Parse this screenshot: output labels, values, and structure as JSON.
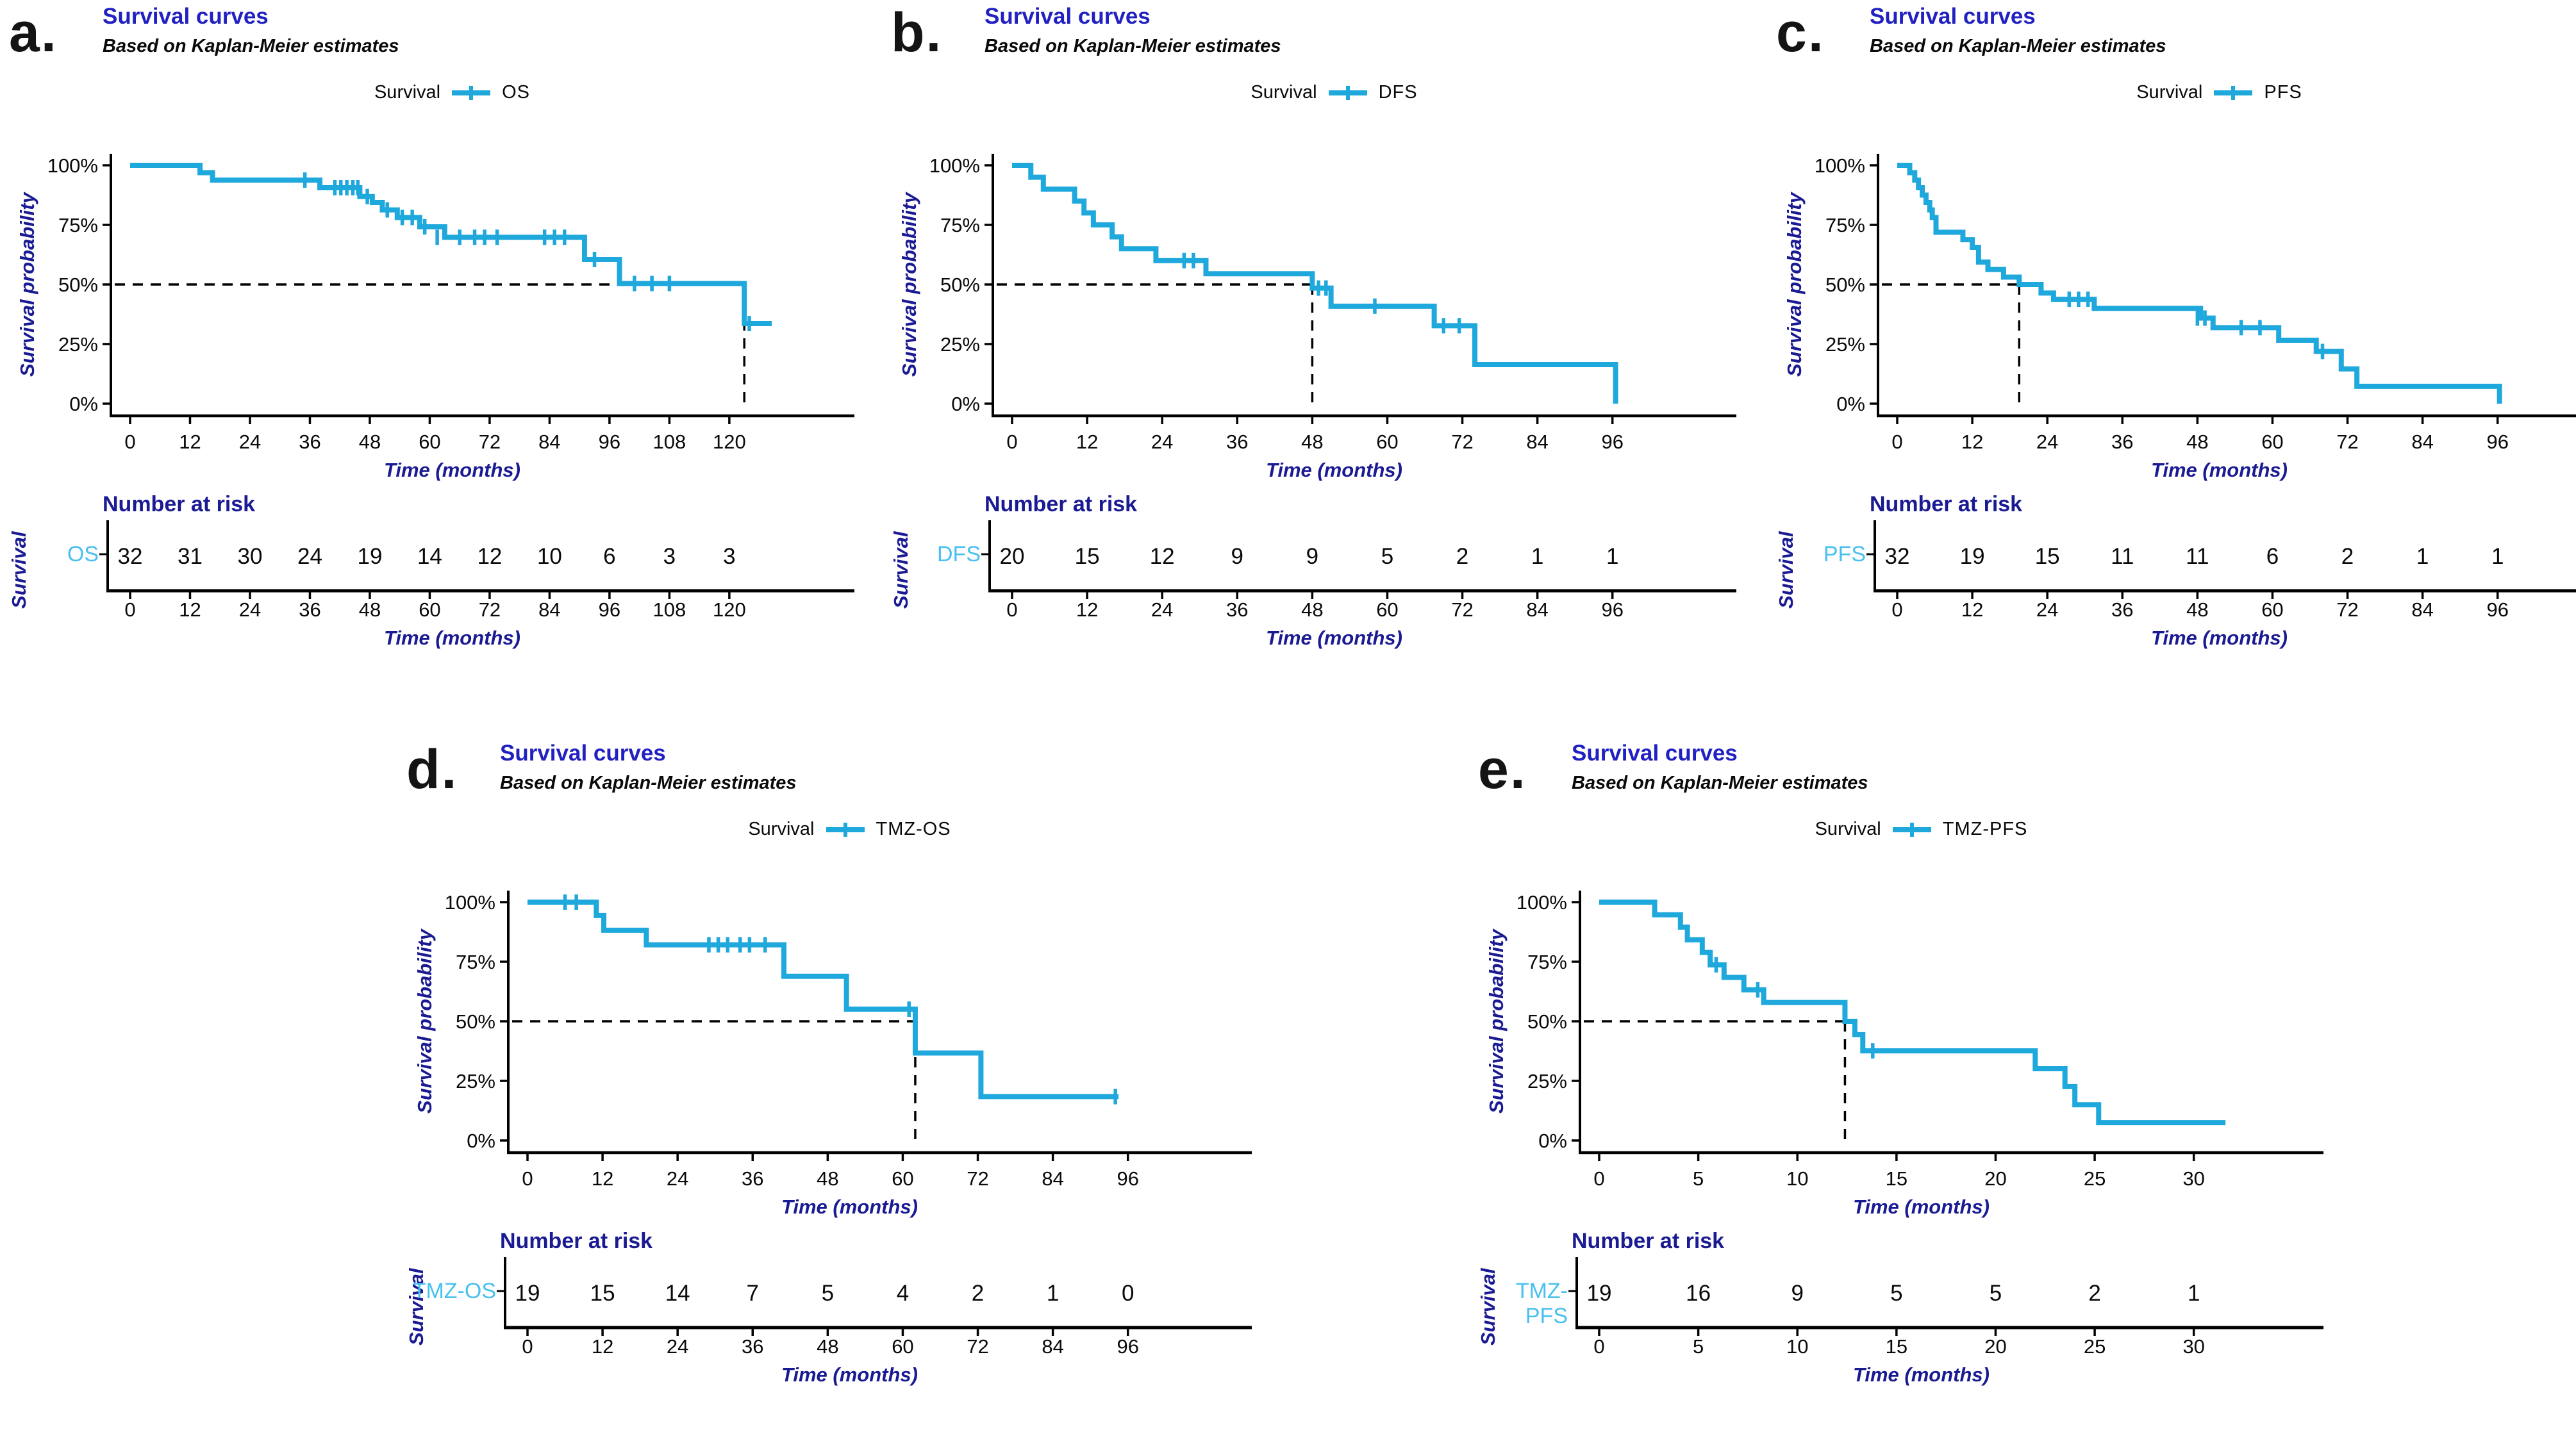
{
  "colors": {
    "curve": "#1FA8DC",
    "risk_row_label": "#49C0EF",
    "title_blue": "#2121C2",
    "axis_label_navy": "#1A1A93",
    "text_black": "#0a0a0a"
  },
  "chart_data": [
    {
      "type": "line",
      "letter": "a.",
      "title": "Survival curves",
      "subtitle": "Based on Kaplan-Meier estimates",
      "legend_label": "Survival",
      "series_name": "OS",
      "ylabel": "Survival probability",
      "xlabel": "Time (months)",
      "yticks": [
        "100%",
        "75%",
        "50%",
        "25%",
        "0%"
      ],
      "ylim": [
        0,
        100
      ],
      "xticks": [
        0,
        12,
        24,
        36,
        48,
        60,
        72,
        84,
        96,
        108,
        120
      ],
      "domain_max": 129,
      "median_month": 123,
      "steps": [
        [
          0,
          100
        ],
        [
          14,
          96.9
        ],
        [
          16.5,
          93.8
        ],
        [
          38,
          90.6
        ],
        [
          46,
          86.9
        ],
        [
          48.5,
          84.4
        ],
        [
          50.5,
          81.3
        ],
        [
          53.5,
          78.1
        ],
        [
          58,
          74.2
        ],
        [
          63,
          69.8
        ],
        [
          91,
          60.5
        ],
        [
          98,
          50.4
        ],
        [
          123,
          33.6
        ],
        [
          128.5,
          33.6
        ]
      ],
      "censors": [
        [
          35,
          93.8
        ],
        [
          41,
          90.6
        ],
        [
          42.2,
          90.6
        ],
        [
          43.4,
          90.6
        ],
        [
          44.6,
          90.6
        ],
        [
          45.6,
          90.6
        ],
        [
          47.5,
          86.9
        ],
        [
          51.5,
          81.3
        ],
        [
          54.5,
          78.1
        ],
        [
          56.5,
          78.1
        ],
        [
          59,
          74.2
        ],
        [
          61.5,
          69.8
        ],
        [
          66,
          69.8
        ],
        [
          69,
          69.8
        ],
        [
          71,
          69.8
        ],
        [
          73.5,
          69.8
        ],
        [
          83,
          69.8
        ],
        [
          85,
          69.8
        ],
        [
          87,
          69.8
        ],
        [
          93,
          60.5
        ],
        [
          101,
          50.4
        ],
        [
          104.5,
          50.4
        ],
        [
          108,
          50.4
        ],
        [
          124,
          33.6
        ]
      ],
      "risk": {
        "title": "Number at risk",
        "ylabel": "Survival",
        "row_label": "OS",
        "times": [
          0,
          12,
          24,
          36,
          48,
          60,
          72,
          84,
          96,
          108,
          120
        ],
        "values": [
          32,
          31,
          30,
          24,
          19,
          14,
          12,
          10,
          6,
          3,
          3
        ]
      }
    },
    {
      "type": "line",
      "letter": "b.",
      "title": "Survival curves",
      "subtitle": "Based on Kaplan-Meier estimates",
      "legend_label": "Survival",
      "series_name": "DFS",
      "ylabel": "Survival probability",
      "xlabel": "Time (months)",
      "yticks": [
        "100%",
        "75%",
        "50%",
        "25%",
        "0%"
      ],
      "ylim": [
        0,
        100
      ],
      "xticks": [
        0,
        12,
        24,
        36,
        48,
        60,
        72,
        84,
        96
      ],
      "domain_max": 103,
      "median_month": 48,
      "steps": [
        [
          0,
          100
        ],
        [
          3,
          95
        ],
        [
          5,
          90
        ],
        [
          10,
          85
        ],
        [
          11.5,
          80
        ],
        [
          13,
          75
        ],
        [
          16,
          70
        ],
        [
          17.5,
          65
        ],
        [
          23,
          60
        ],
        [
          31,
          54.5
        ],
        [
          48,
          48.5
        ],
        [
          51,
          40.9
        ],
        [
          67.5,
          32.7
        ],
        [
          74,
          16.4
        ],
        [
          96.5,
          0
        ]
      ],
      "censors": [
        [
          27.5,
          60
        ],
        [
          29,
          60
        ],
        [
          49,
          48.5
        ],
        [
          50.2,
          48.5
        ],
        [
          58,
          40.9
        ],
        [
          69,
          32.7
        ],
        [
          71.5,
          32.7
        ]
      ],
      "risk": {
        "title": "Number at risk",
        "ylabel": "Survival",
        "row_label": "DFS",
        "times": [
          0,
          12,
          24,
          36,
          48,
          60,
          72,
          84,
          96
        ],
        "values": [
          20,
          15,
          12,
          9,
          9,
          5,
          2,
          1,
          1
        ]
      }
    },
    {
      "type": "line",
      "letter": "c.",
      "title": "Survival curves",
      "subtitle": "Based on Kaplan-Meier estimates",
      "legend_label": "Survival",
      "series_name": "PFS",
      "ylabel": "Survival probability",
      "xlabel": "Time (months)",
      "yticks": [
        "100%",
        "75%",
        "50%",
        "25%",
        "0%"
      ],
      "ylim": [
        0,
        100
      ],
      "xticks": [
        0,
        12,
        24,
        36,
        48,
        60,
        72,
        84,
        96
      ],
      "domain_max": 103,
      "median_month": 19.5,
      "steps": [
        [
          0,
          100
        ],
        [
          2,
          96.9
        ],
        [
          2.8,
          93.8
        ],
        [
          3.4,
          90.6
        ],
        [
          4,
          87.5
        ],
        [
          4.6,
          84.4
        ],
        [
          5.2,
          81.3
        ],
        [
          5.6,
          78.1
        ],
        [
          6.2,
          71.9
        ],
        [
          10.5,
          68.8
        ],
        [
          12,
          65.6
        ],
        [
          13,
          59.4
        ],
        [
          14.5,
          56.3
        ],
        [
          17,
          53.1
        ],
        [
          19.5,
          50
        ],
        [
          23,
          46.4
        ],
        [
          25,
          43.8
        ],
        [
          31.5,
          40
        ],
        [
          48.5,
          35.9
        ],
        [
          50.5,
          31.9
        ],
        [
          61,
          26.6
        ],
        [
          67,
          21.9
        ],
        [
          71,
          14.6
        ],
        [
          73.5,
          7.3
        ],
        [
          96.3,
          0
        ]
      ],
      "censors": [
        [
          27.5,
          43.8
        ],
        [
          29,
          43.8
        ],
        [
          30.5,
          43.8
        ],
        [
          48,
          35.9
        ],
        [
          49.2,
          35.9
        ],
        [
          55,
          31.9
        ],
        [
          58,
          31.9
        ],
        [
          68,
          21.9
        ]
      ],
      "risk": {
        "title": "Number at risk",
        "ylabel": "Survival",
        "row_label": "PFS",
        "times": [
          0,
          12,
          24,
          36,
          48,
          60,
          72,
          84,
          96
        ],
        "values": [
          32,
          19,
          15,
          11,
          11,
          6,
          2,
          1,
          1
        ]
      }
    },
    {
      "type": "line",
      "letter": "d.",
      "title": "Survival curves",
      "subtitle": "Based on Kaplan-Meier estimates",
      "legend_label": "Survival",
      "series_name": "TMZ-OS",
      "ylabel": "Survival probability",
      "xlabel": "Time (months)",
      "yticks": [
        "100%",
        "75%",
        "50%",
        "25%",
        "0%"
      ],
      "ylim": [
        0,
        100
      ],
      "xticks": [
        0,
        12,
        24,
        36,
        48,
        60,
        72,
        84,
        96
      ],
      "domain_max": 103,
      "median_month": 62,
      "steps": [
        [
          0,
          100
        ],
        [
          11,
          94.4
        ],
        [
          12.2,
          88.2
        ],
        [
          19,
          82.1
        ],
        [
          41,
          68.9
        ],
        [
          51,
          55.1
        ],
        [
          62,
          36.7
        ],
        [
          72.5,
          18.4
        ],
        [
          94.5,
          18.4
        ]
      ],
      "censors": [
        [
          6,
          100
        ],
        [
          7.8,
          100
        ],
        [
          29,
          82.1
        ],
        [
          30.5,
          82.1
        ],
        [
          32,
          82.1
        ],
        [
          34,
          82.1
        ],
        [
          35.5,
          82.1
        ],
        [
          38,
          82.1
        ],
        [
          61,
          55.1
        ],
        [
          94,
          18.4
        ]
      ],
      "risk": {
        "title": "Number at risk",
        "ylabel": "Survival",
        "row_label": "TMZ-OS",
        "times": [
          0,
          12,
          24,
          36,
          48,
          60,
          72,
          84,
          96
        ],
        "values": [
          19,
          15,
          14,
          7,
          5,
          4,
          2,
          1,
          0
        ]
      }
    },
    {
      "type": "line",
      "letter": "e.",
      "title": "Survival curves",
      "subtitle": "Based on Kaplan-Meier estimates",
      "legend_label": "Survival",
      "series_name": "TMZ-PFS",
      "ylabel": "Survival probability",
      "xlabel": "Time (months)",
      "yticks": [
        "100%",
        "75%",
        "50%",
        "25%",
        "0%"
      ],
      "ylim": [
        0,
        100
      ],
      "xticks": [
        0,
        5,
        10,
        15,
        20,
        25,
        30
      ],
      "domain_max": 32.5,
      "median_month": 12.4,
      "steps": [
        [
          0,
          100
        ],
        [
          2.8,
          94.7
        ],
        [
          4.1,
          89.5
        ],
        [
          4.45,
          84.2
        ],
        [
          5.2,
          78.9
        ],
        [
          5.6,
          73.7
        ],
        [
          6.3,
          68.4
        ],
        [
          7.3,
          63.2
        ],
        [
          8.3,
          57.9
        ],
        [
          12.4,
          50
        ],
        [
          12.9,
          44.4
        ],
        [
          13.3,
          37.6
        ],
        [
          22,
          30.1
        ],
        [
          23.5,
          22.6
        ],
        [
          24,
          15
        ],
        [
          25.2,
          7.5
        ],
        [
          31.6,
          7.5
        ]
      ],
      "censors": [
        [
          5.9,
          73.7
        ],
        [
          8,
          63.2
        ],
        [
          13.8,
          37.6
        ]
      ],
      "risk": {
        "title": "Number at risk",
        "ylabel": "Survival",
        "row_label": "TMZ-PFS",
        "times": [
          0,
          5,
          10,
          15,
          20,
          25,
          30
        ],
        "values": [
          19,
          16,
          9,
          5,
          5,
          2,
          1
        ]
      }
    }
  ]
}
